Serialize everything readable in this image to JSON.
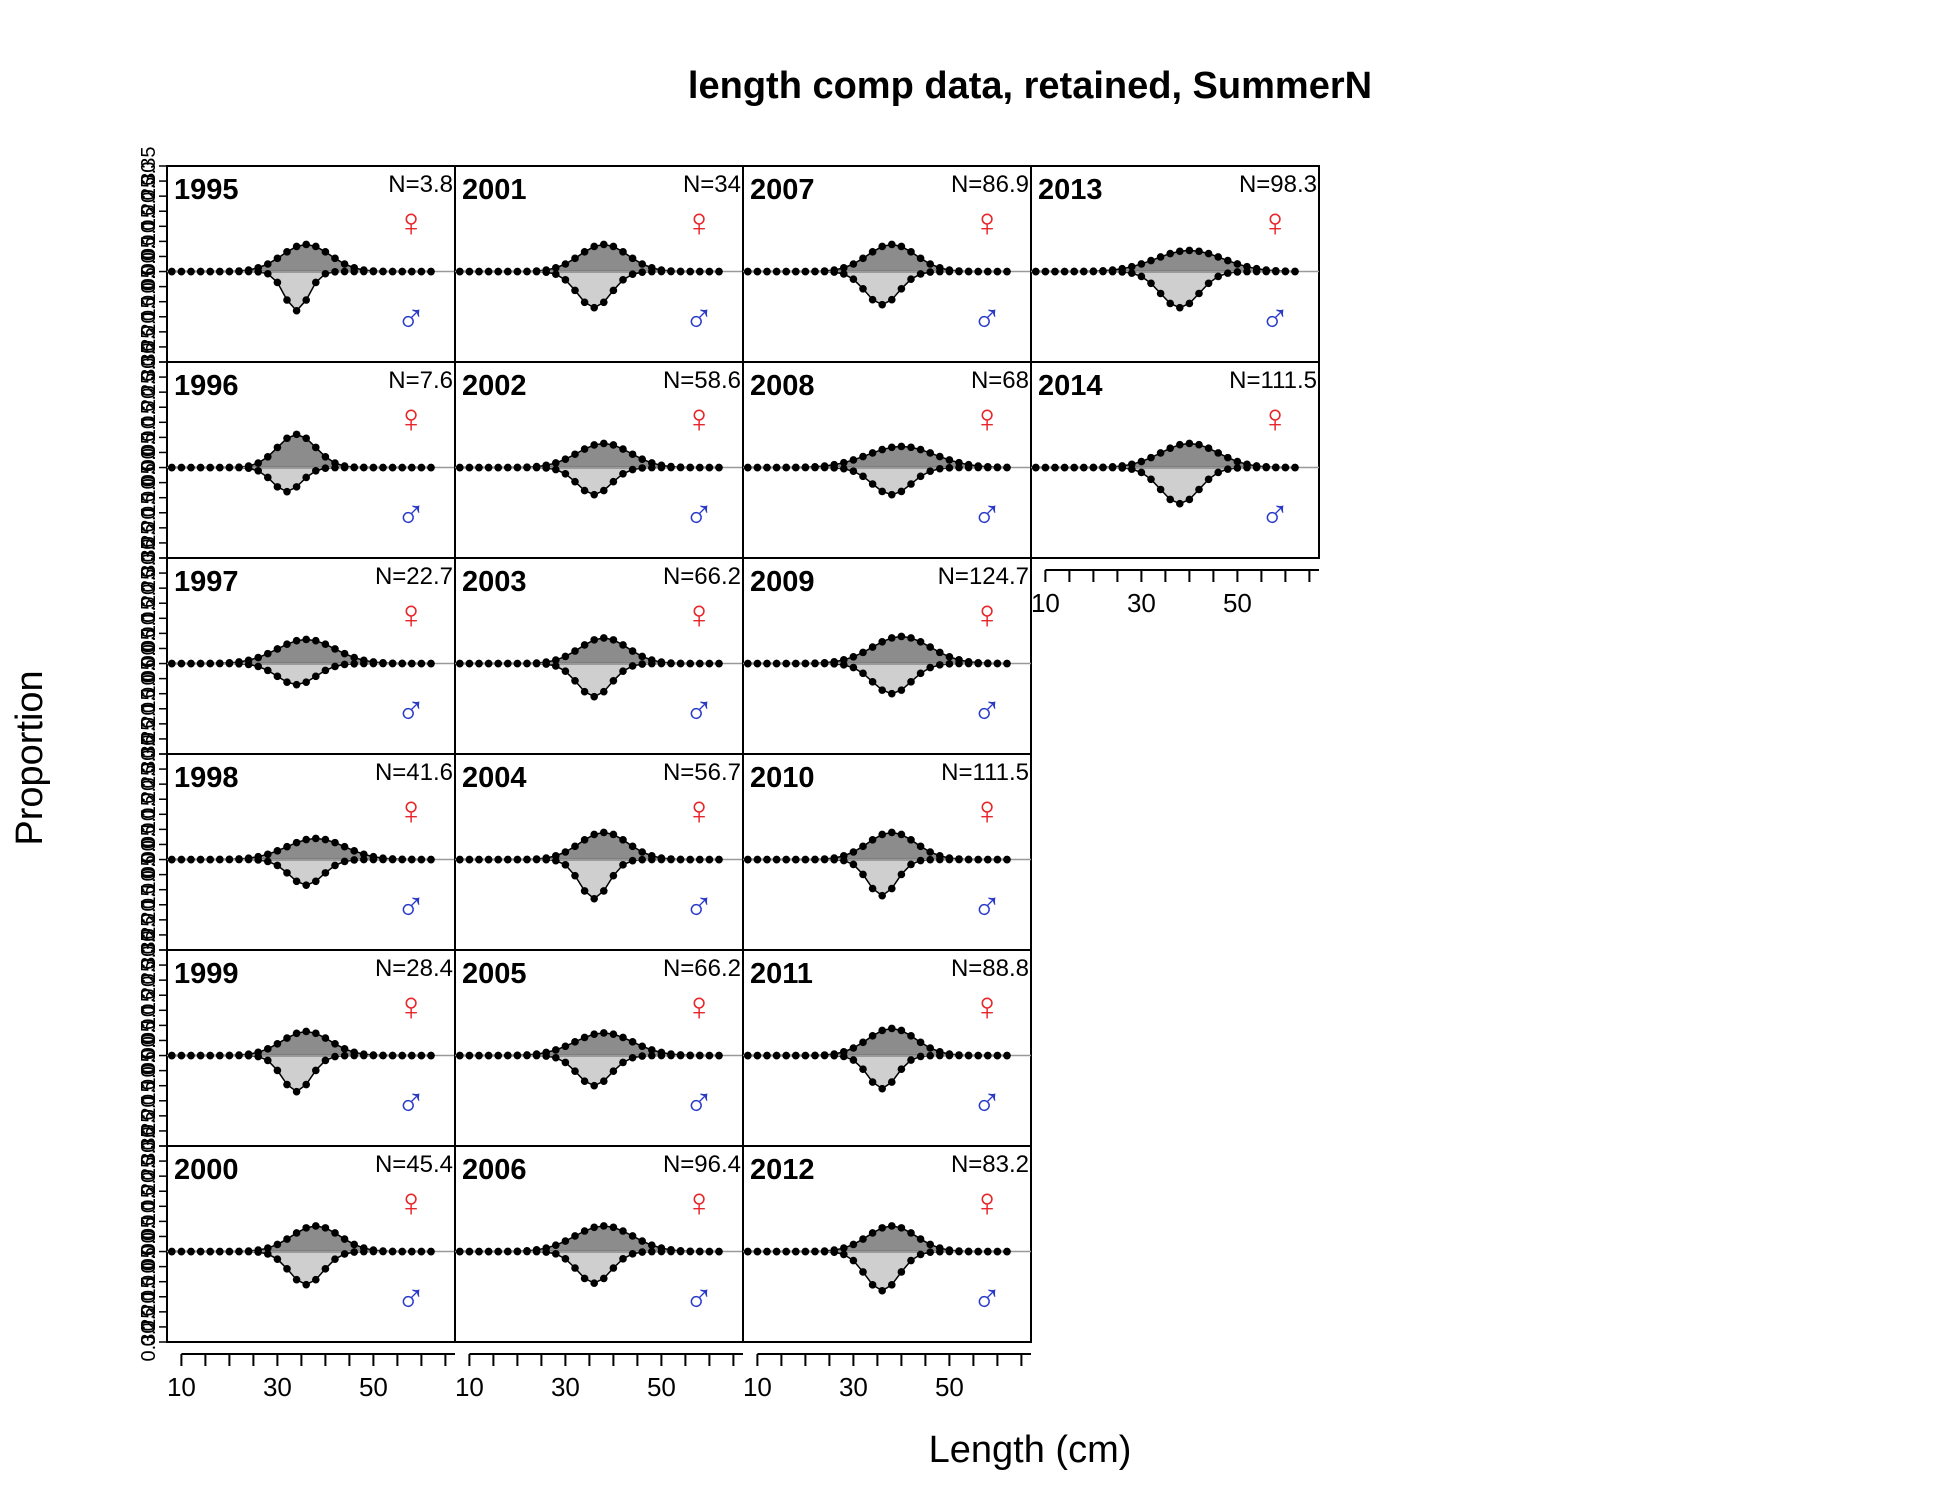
{
  "chart_data": {
    "type": "area",
    "title": "length comp data, retained, SummerN",
    "xlabel": "Length (cm)",
    "ylabel": "Proportion",
    "xlim": [
      7,
      67
    ],
    "ylim": [
      -0.3,
      0.35
    ],
    "x_ticks": [
      10,
      15,
      20,
      25,
      30,
      35,
      40,
      45,
      50,
      55,
      60,
      65
    ],
    "x_tick_labels": [
      "10",
      "30",
      "50"
    ],
    "y_ticks": [
      0.35,
      0.3,
      0.25,
      0.2,
      0.15,
      0.1,
      0.05,
      0.0,
      -0.05,
      -0.1,
      -0.15,
      -0.2,
      -0.25,
      -0.3
    ],
    "y_tick_labels": [
      "0.35",
      "0.30",
      "0.25",
      "0.20",
      "0.15",
      "0.10",
      "0.05",
      "0.00",
      "0.05",
      "0.10",
      "0.15",
      "0.20",
      "0.25",
      "0.30"
    ],
    "length_bins": [
      8,
      10,
      12,
      14,
      16,
      18,
      20,
      22,
      24,
      26,
      28,
      30,
      32,
      34,
      36,
      38,
      40,
      42,
      44,
      46,
      48,
      50,
      52,
      54,
      56,
      58,
      60,
      62
    ],
    "series_styles": [
      {
        "sex": "female",
        "symbol": "♀",
        "symbol_color": "#e8262a",
        "fill": "#8c8c8c"
      },
      {
        "sex": "male",
        "symbol": "♂",
        "symbol_color": "#2a39c8",
        "fill": "#cfcfcf"
      }
    ],
    "panels": [
      {
        "year": "1995",
        "n_label": "N=3.8",
        "center": 36,
        "f_amp": 0.09,
        "f_sd": 5,
        "m_amp": 0.13,
        "m_sd": 2.5
      },
      {
        "year": "1996",
        "n_label": "N=7.6",
        "center": 34,
        "f_amp": 0.11,
        "f_sd": 4,
        "m_amp": 0.08,
        "m_sd": 3
      },
      {
        "year": "1997",
        "n_label": "N=22.7",
        "center": 36,
        "f_amp": 0.08,
        "f_sd": 6,
        "m_amp": 0.07,
        "m_sd": 4
      },
      {
        "year": "1998",
        "n_label": "N=41.6",
        "center": 38,
        "f_amp": 0.07,
        "f_sd": 6,
        "m_amp": 0.085,
        "m_sd": 3.5
      },
      {
        "year": "1999",
        "n_label": "N=28.4",
        "center": 36,
        "f_amp": 0.08,
        "f_sd": 5,
        "m_amp": 0.12,
        "m_sd": 3
      },
      {
        "year": "2000",
        "n_label": "N=45.4",
        "center": 38,
        "f_amp": 0.085,
        "f_sd": 5,
        "m_amp": 0.11,
        "m_sd": 3.5
      },
      {
        "year": "2001",
        "n_label": "N=34",
        "center": 38,
        "f_amp": 0.09,
        "f_sd": 5,
        "m_amp": 0.12,
        "m_sd": 3.5
      },
      {
        "year": "2002",
        "n_label": "N=58.6",
        "center": 38,
        "f_amp": 0.08,
        "f_sd": 5.5,
        "m_amp": 0.09,
        "m_sd": 3.5
      },
      {
        "year": "2003",
        "n_label": "N=66.2",
        "center": 38,
        "f_amp": 0.085,
        "f_sd": 5,
        "m_amp": 0.11,
        "m_sd": 3.5
      },
      {
        "year": "2004",
        "n_label": "N=56.7",
        "center": 38,
        "f_amp": 0.09,
        "f_sd": 5,
        "m_amp": 0.13,
        "m_sd": 3
      },
      {
        "year": "2005",
        "n_label": "N=66.2",
        "center": 38,
        "f_amp": 0.075,
        "f_sd": 6,
        "m_amp": 0.1,
        "m_sd": 3.5
      },
      {
        "year": "2006",
        "n_label": "N=96.4",
        "center": 38,
        "f_amp": 0.085,
        "f_sd": 6,
        "m_amp": 0.105,
        "m_sd": 3.5
      },
      {
        "year": "2007",
        "n_label": "N=86.9",
        "center": 38,
        "f_amp": 0.09,
        "f_sd": 5,
        "m_amp": 0.11,
        "m_sd": 3.5
      },
      {
        "year": "2008",
        "n_label": "N=68",
        "center": 40,
        "f_amp": 0.07,
        "f_sd": 7,
        "m_amp": 0.09,
        "m_sd": 4
      },
      {
        "year": "2009",
        "n_label": "N=124.7",
        "center": 40,
        "f_amp": 0.09,
        "f_sd": 6,
        "m_amp": 0.1,
        "m_sd": 4
      },
      {
        "year": "2010",
        "n_label": "N=111.5",
        "center": 38,
        "f_amp": 0.09,
        "f_sd": 5,
        "m_amp": 0.12,
        "m_sd": 3
      },
      {
        "year": "2011",
        "n_label": "N=88.8",
        "center": 38,
        "f_amp": 0.09,
        "f_sd": 5,
        "m_amp": 0.11,
        "m_sd": 3
      },
      {
        "year": "2012",
        "n_label": "N=83.2",
        "center": 38,
        "f_amp": 0.085,
        "f_sd": 5,
        "m_amp": 0.13,
        "m_sd": 3.5
      },
      {
        "year": "2013",
        "n_label": "N=98.3",
        "center": 40,
        "f_amp": 0.07,
        "f_sd": 7,
        "m_amp": 0.12,
        "m_sd": 4
      },
      {
        "year": "2014",
        "n_label": "N=111.5",
        "center": 40,
        "f_amp": 0.08,
        "f_sd": 6,
        "m_amp": 0.12,
        "m_sd": 4
      }
    ]
  }
}
